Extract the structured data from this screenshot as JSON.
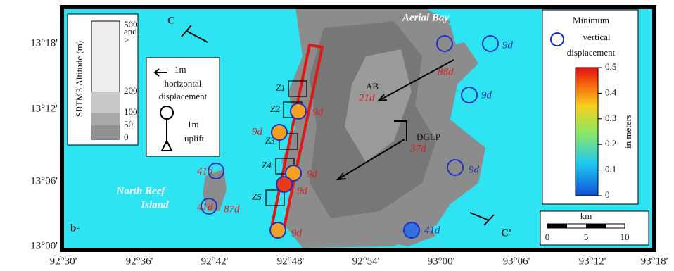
{
  "map": {
    "panel_label": "b-",
    "longitude_ticks": [
      "92°30'",
      "92°36'",
      "92°42'",
      "92°48'",
      "92°54'",
      "93°00'",
      "93°06'",
      "93°12'",
      "93°18'"
    ],
    "latitude_ticks": [
      "13°18'",
      "13°12'",
      "13°06'",
      "13°00'"
    ],
    "section_labels": [
      "C",
      "C'"
    ],
    "place_labels": [
      "Aerial Bay",
      "North Reef",
      "Island"
    ],
    "zones": [
      "Z1",
      "Z2",
      "Z3",
      "Z4",
      "Z5"
    ],
    "stations": [
      {
        "name": "AB",
        "duration": "21d"
      },
      {
        "name": "DGLP",
        "duration": "37d"
      }
    ],
    "sites": [
      {
        "label": "9d"
      },
      {
        "label": "9d"
      },
      {
        "label": "9d",
        "color": "#f5a020"
      },
      {
        "label": "9d",
        "color": "#f0a020"
      },
      {
        "label": "9d"
      },
      {
        "label": "9d",
        "color": "#f5a020"
      },
      {
        "label": "9d",
        "color": "#e83a1a"
      },
      {
        "label": "9d",
        "color": "#f0a030"
      },
      {
        "label": "41d"
      },
      {
        "label": "41d"
      },
      {
        "label": "87d"
      },
      {
        "label": "88d"
      },
      {
        "label": "41d",
        "color": "#3070e0"
      }
    ]
  },
  "altitude_legend": {
    "title": "SRTM3 Altitude (m)",
    "labels": [
      "500",
      "and",
      ">",
      "200",
      "100",
      "50",
      "0"
    ]
  },
  "displacement_legend": {
    "horizontal": [
      "1m",
      "horizontal",
      "displacement"
    ],
    "uplift": [
      "1m",
      "uplift"
    ]
  },
  "colorbar": {
    "title": [
      "Minimum",
      "vertical",
      "displacement"
    ],
    "ticks": [
      "0.5",
      "0.4",
      "0.3",
      "0.2",
      "0.1",
      "0"
    ],
    "unit": "in meters"
  },
  "scale_bar": {
    "unit": "km",
    "ticks": [
      "0",
      "5",
      "10"
    ]
  }
}
